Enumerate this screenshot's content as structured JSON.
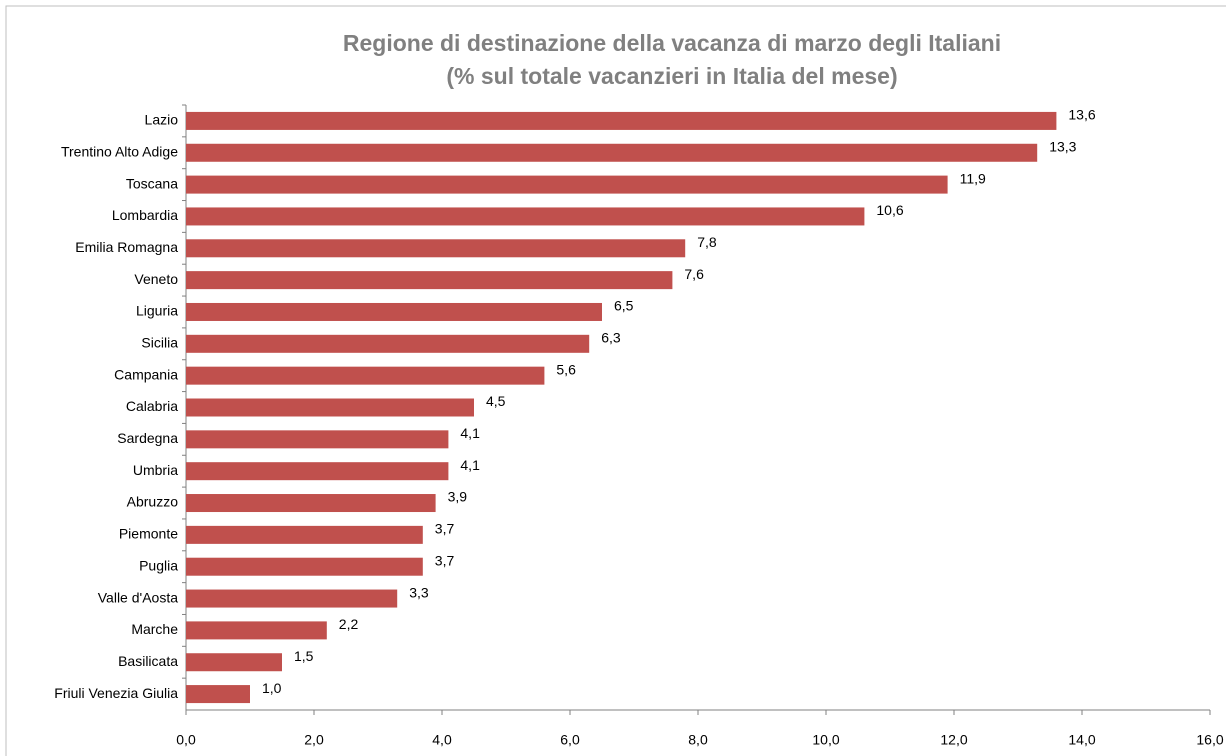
{
  "chart_data": {
    "type": "bar",
    "orientation": "horizontal",
    "title": [
      "Regione di destinazione della vacanza di marzo degli Italiani",
      "(% sul totale vacanzieri in Italia del mese)"
    ],
    "categories": [
      "Lazio",
      "Trentino Alto Adige",
      "Toscana",
      "Lombardia",
      "Emilia Romagna",
      "Veneto",
      "Liguria",
      "Sicilia",
      "Campania",
      "Calabria",
      "Sardegna",
      "Umbria",
      "Abruzzo",
      "Piemonte",
      "Puglia",
      "Valle d'Aosta",
      "Marche",
      "Basilicata",
      "Friuli Venezia Giulia"
    ],
    "values": [
      13.6,
      13.3,
      11.9,
      10.6,
      7.8,
      7.6,
      6.5,
      6.3,
      5.6,
      4.5,
      4.1,
      4.1,
      3.9,
      3.7,
      3.7,
      3.3,
      2.2,
      1.5,
      1.0
    ],
    "value_labels": [
      "13,6",
      "13,3",
      "11,9",
      "10,6",
      "7,8",
      "7,6",
      "6,5",
      "6,3",
      "5,6",
      "4,5",
      "4,1",
      "4,1",
      "3,9",
      "3,7",
      "3,7",
      "3,3",
      "2,2",
      "1,5",
      "1,0"
    ],
    "color": "#c0504d",
    "xlim": [
      0,
      16
    ],
    "xticks": [
      {
        "value": 0,
        "label": "0,0"
      },
      {
        "value": 2,
        "label": "2,0"
      },
      {
        "value": 4,
        "label": "4,0"
      },
      {
        "value": 6,
        "label": "6,0"
      },
      {
        "value": 8,
        "label": "8,0"
      },
      {
        "value": 10,
        "label": "10,0"
      },
      {
        "value": 12,
        "label": "12,0"
      },
      {
        "value": 14,
        "label": "14,0"
      },
      {
        "value": 16,
        "label": "16,0"
      }
    ],
    "grid": false
  }
}
